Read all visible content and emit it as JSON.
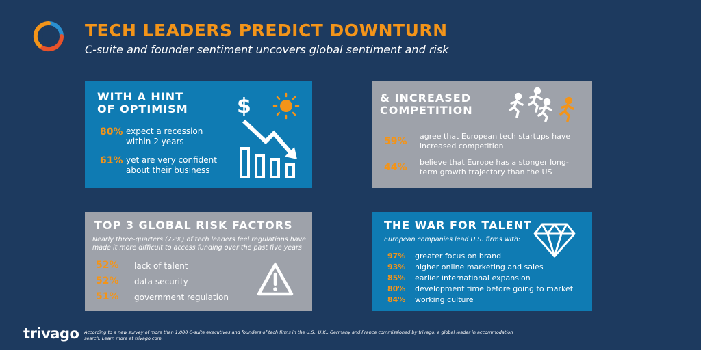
{
  "title": "TECH LEADERS PREDICT DOWNTURN",
  "subtitle": "C-suite and founder sentiment uncovers global sentiment and risk",
  "optimism": {
    "heading_line1": "WITH A HINT",
    "heading_line2": "OF OPTIMISM",
    "stats": [
      {
        "pct": "80%",
        "line1": "expect a recession",
        "line2": "within 2 years"
      },
      {
        "pct": "61%",
        "line1": "yet are very confident",
        "line2": "about their business"
      }
    ],
    "icon_dollar": "$"
  },
  "competition": {
    "heading_line1": "& INCREASED",
    "heading_line2": "COMPETITION",
    "stats": [
      {
        "pct": "59%",
        "line1": "agree that European tech startups have",
        "line2": "increased competition"
      },
      {
        "pct": "44%",
        "line1": "believe that Europe has a stonger long-",
        "line2": "term  growth trajectory than the US"
      }
    ]
  },
  "risk": {
    "heading": "TOP 3 GLOBAL RISK FACTORS",
    "note_line1": "Nearly three-quarters (72%) of tech leaders feel regulations have",
    "note_line2": "made it more difficult to access funding over the past five years",
    "items": [
      {
        "pct": "52%",
        "label": "lack of talent"
      },
      {
        "pct": "52%",
        "label": "data security"
      },
      {
        "pct": "51%",
        "label": "government regulation"
      }
    ]
  },
  "talent": {
    "heading": "THE WAR FOR TALENT",
    "note": "European companies lead U.S. firms with:",
    "items": [
      {
        "pct": "97%",
        "label": "greater focus on brand"
      },
      {
        "pct": "93%",
        "label": "higher online marketing and sales"
      },
      {
        "pct": "85%",
        "label": "earlier international expansion"
      },
      {
        "pct": "80%",
        "label": "development time before going to market"
      },
      {
        "pct": "84%",
        "label": "working culture"
      }
    ]
  },
  "footer_line1": "According to a new survey of more than 1,000 C-suite executives and founders of tech firms in the U.S., U.K., Germany and France commissioned by trivago, a global leader in accommodation",
  "footer_line2": "search. Learn more at trivago.com.",
  "brand": "trivago",
  "colors": {
    "background": "#1d3a5f",
    "accent": "#f39419",
    "blue_panel": "#0f7bb3",
    "gray_panel": "#9ea2aa"
  }
}
